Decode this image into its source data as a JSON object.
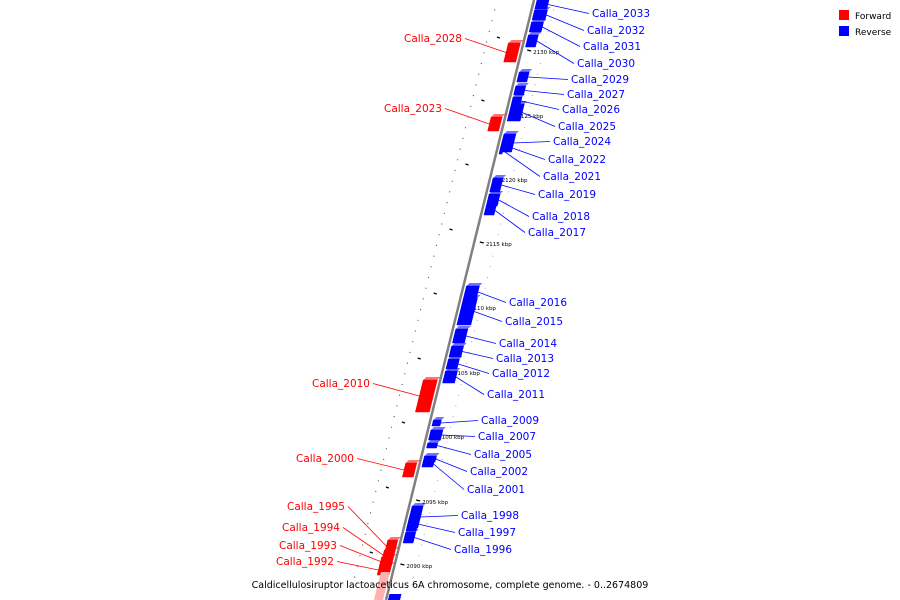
{
  "caption": "Caldicellulosiruptor lactoaceticus 6A chromosome, complete genome. - 0..2674809",
  "legend": [
    {
      "label": "Forward",
      "color": "#ff0000"
    },
    {
      "label": "Reverse",
      "color": "#0000ff"
    }
  ],
  "colors": {
    "forward": "#ff0000",
    "reverse": "#0000ff",
    "backbone": "#808080"
  },
  "ticks": [
    "2130 kbp",
    "2125 kbp",
    "2120 kbp",
    "2115 kbp",
    "2110 kbp",
    "2105 kbp",
    "2100 kbp",
    "2095 kbp",
    "2090 kbp"
  ],
  "forward_genes": [
    "Calla_2028",
    "Calla_2023",
    "Calla_2010",
    "Calla_2000",
    "Calla_1995",
    "Calla_1994",
    "Calla_1993",
    "Calla_1992"
  ],
  "reverse_genes": [
    "Calla_2033",
    "Calla_2032",
    "Calla_2031",
    "Calla_2030",
    "Calla_2029",
    "Calla_2027",
    "Calla_2026",
    "Calla_2025",
    "Calla_2024",
    "Calla_2022",
    "Calla_2021",
    "Calla_2019",
    "Calla_2018",
    "Calla_2017",
    "Calla_2016",
    "Calla_2015",
    "Calla_2014",
    "Calla_2013",
    "Calla_2012",
    "Calla_2011",
    "Calla_2009",
    "Calla_2007",
    "Calla_2005",
    "Calla_2002",
    "Calla_2001",
    "Calla_1998",
    "Calla_1997",
    "Calla_1996"
  ]
}
